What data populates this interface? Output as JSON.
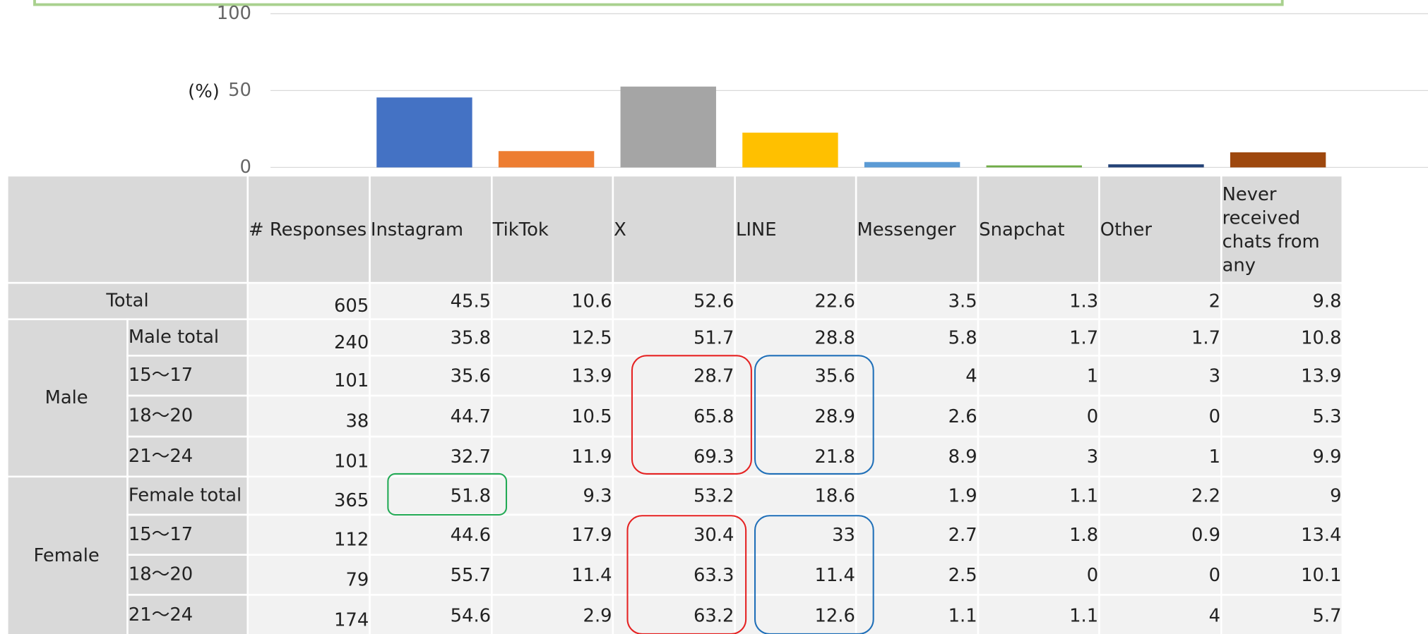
{
  "chart_data": {
    "type": "bar",
    "y_label": "(%)",
    "categories": [
      null,
      null,
      null,
      null,
      null,
      null,
      null,
      null
    ],
    "values": [
      45.5,
      10.6,
      52.6,
      22.6,
      3.5,
      1.3,
      2,
      9.8
    ],
    "colors": [
      "#4472c4",
      "#ed7d31",
      "#a5a5a5",
      "#ffc000",
      "#5b9bd5",
      "#70ad47",
      "#264478",
      "#9e480e"
    ],
    "ylim": [
      0,
      100
    ],
    "yticks": [
      0,
      50,
      100
    ],
    "grid": true
  },
  "table": {
    "columns": [
      "# Responses",
      "Instagram",
      "TikTok",
      "X",
      "LINE",
      "Messenger",
      "Snapchat",
      "Other",
      "Never received chats from any"
    ],
    "total": {
      "label": "Total",
      "values": [
        605,
        45.5,
        10.6,
        52.6,
        22.6,
        3.5,
        1.3,
        2,
        9.8
      ]
    },
    "groups": [
      {
        "label": "Male",
        "rows": [
          {
            "label": "Male total",
            "values": [
              240,
              35.8,
              12.5,
              51.7,
              28.8,
              5.8,
              1.7,
              1.7,
              10.8
            ]
          },
          {
            "label": "15～17",
            "values": [
              101,
              35.6,
              13.9,
              28.7,
              35.6,
              4,
              1,
              3,
              13.9
            ]
          },
          {
            "label": "18～20",
            "values": [
              38,
              44.7,
              10.5,
              65.8,
              28.9,
              2.6,
              0,
              0,
              5.3
            ]
          },
          {
            "label": "21～24",
            "values": [
              101,
              32.7,
              11.9,
              69.3,
              21.8,
              8.9,
              3,
              1,
              9.9
            ]
          }
        ]
      },
      {
        "label": "Female",
        "rows": [
          {
            "label": "Female total",
            "values": [
              365,
              51.8,
              9.3,
              53.2,
              18.6,
              1.9,
              1.1,
              2.2,
              9
            ]
          },
          {
            "label": "15～17",
            "values": [
              112,
              44.6,
              17.9,
              30.4,
              33,
              2.7,
              1.8,
              0.9,
              13.4
            ]
          },
          {
            "label": "18～20",
            "values": [
              79,
              55.7,
              11.4,
              63.3,
              11.4,
              2.5,
              0,
              0,
              10.1
            ]
          },
          {
            "label": "21～24",
            "values": [
              174,
              54.6,
              2.9,
              63.2,
              12.6,
              1.1,
              1.1,
              4,
              5.7
            ]
          }
        ]
      }
    ]
  }
}
